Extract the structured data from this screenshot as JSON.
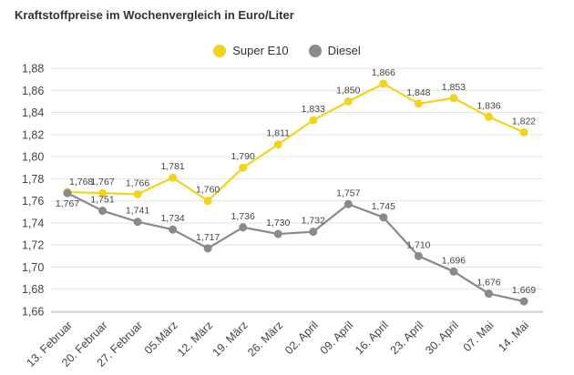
{
  "chart_data": {
    "type": "line",
    "title": "Kraftstoffpreise im Wochenvergleich in Euro/Liter",
    "categories": [
      "13. Februar",
      "20. Februar",
      "27. Februar",
      "05.März",
      "12. März",
      "19. März",
      "26. März",
      "02. April",
      "09. April",
      "16. April",
      "23. April",
      "30. April",
      "07. Mai",
      "14. Mai"
    ],
    "series": [
      {
        "name": "Super E10",
        "color": "#f2d41f",
        "values": [
          1.768,
          1.767,
          1.766,
          1.781,
          1.76,
          1.79,
          1.811,
          1.833,
          1.85,
          1.866,
          1.848,
          1.853,
          1.836,
          1.822
        ],
        "labels": [
          "1,768",
          "1,767",
          "1,766",
          "1,781",
          "1,760",
          "1,790",
          "1,811",
          "1,833",
          "1,850",
          "1,866",
          "1,848",
          "1,853",
          "1,836",
          "1,822"
        ]
      },
      {
        "name": "Diesel",
        "color": "#8a8a8a",
        "values": [
          1.767,
          1.751,
          1.741,
          1.734,
          1.717,
          1.736,
          1.73,
          1.732,
          1.757,
          1.745,
          1.71,
          1.696,
          1.676,
          1.669
        ],
        "labels": [
          "1,767",
          "1,751",
          "1,741",
          "1,734",
          "1,717",
          "1,736",
          "1,730",
          "1,732",
          "1,757",
          "1,745",
          "1,710",
          "1,696",
          "1,676",
          "1,669"
        ]
      }
    ],
    "yticks": [
      "1,66",
      "1,68",
      "1,70",
      "1,72",
      "1,74",
      "1,76",
      "1,78",
      "1,80",
      "1,82",
      "1,84",
      "1,86",
      "1,88"
    ],
    "ylim": [
      1.66,
      1.88
    ],
    "grid": true,
    "legend_position": "top-center"
  }
}
